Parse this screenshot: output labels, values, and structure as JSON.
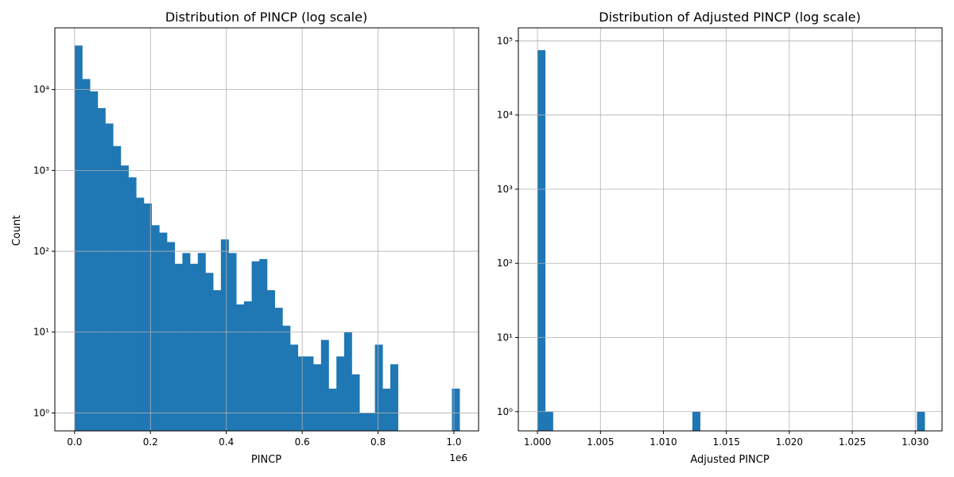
{
  "chart_data": [
    {
      "type": "bar",
      "title": "Distribution of PINCP (log scale)",
      "xlabel": "PINCP",
      "ylabel": "Count",
      "x_offset_label": "1e6",
      "yscale": "log",
      "grid": true,
      "xlim": [
        -52000,
        1065000
      ],
      "ylim": [
        0.6,
        58000
      ],
      "x_ticks": [
        0,
        200000,
        400000,
        600000,
        800000,
        1000000
      ],
      "x_tick_labels": [
        "0.0",
        "0.2",
        "0.4",
        "0.6",
        "0.8",
        "1.0"
      ],
      "y_ticks": [
        1,
        10,
        100,
        1000,
        10000
      ],
      "y_tick_labels": [
        "10⁰",
        "10¹",
        "10²",
        "10³",
        "10⁴"
      ],
      "bin_start": 0,
      "bin_width": 20300,
      "values": [
        35000,
        13500,
        9500,
        5900,
        3800,
        2000,
        1150,
        820,
        460,
        390,
        210,
        170,
        130,
        70,
        95,
        70,
        95,
        54,
        33,
        140,
        95,
        22,
        24,
        75,
        80,
        33,
        20,
        12,
        7,
        5,
        5,
        4,
        8,
        2,
        5,
        10,
        3,
        1,
        1,
        7,
        2,
        4,
        0,
        0,
        0,
        0,
        0,
        0,
        0,
        2
      ]
    },
    {
      "type": "bar",
      "title": "Distribution of Adjusted PINCP (log scale)",
      "xlabel": "Adjusted PINCP",
      "ylabel": "",
      "yscale": "log",
      "grid": true,
      "xlim": [
        0.99848,
        1.03213
      ],
      "ylim": [
        0.55,
        150000
      ],
      "x_ticks": [
        1.0,
        1.005,
        1.01,
        1.015,
        1.02,
        1.025,
        1.03
      ],
      "x_tick_labels": [
        "1.000",
        "1.005",
        "1.010",
        "1.015",
        "1.020",
        "1.025",
        "1.030"
      ],
      "y_ticks": [
        1,
        10,
        100,
        1000,
        10000,
        100000
      ],
      "y_tick_labels": [
        "10⁰",
        "10¹",
        "10²",
        "10³",
        "10⁴",
        "10⁵"
      ],
      "bin_start": 1.0,
      "bin_width": 0.000615,
      "values": [
        75000,
        1,
        0,
        0,
        0,
        0,
        0,
        0,
        0,
        0,
        0,
        0,
        0,
        0,
        0,
        0,
        0,
        0,
        0,
        0,
        1,
        0,
        0,
        0,
        0,
        0,
        0,
        0,
        0,
        0,
        0,
        0,
        0,
        0,
        0,
        0,
        0,
        0,
        0,
        0,
        0,
        0,
        0,
        0,
        0,
        0,
        0,
        0,
        0,
        1
      ]
    }
  ]
}
